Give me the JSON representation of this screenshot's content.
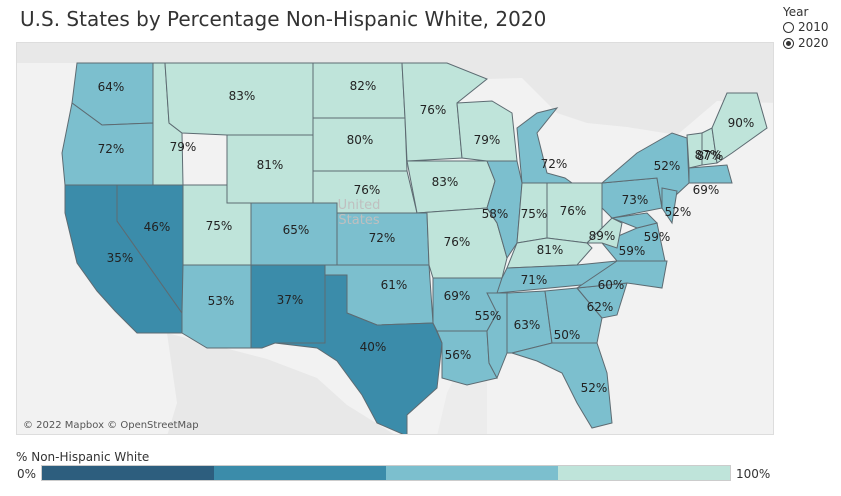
{
  "title": "U.S. States by Percentage Non-Hispanic White, 2020",
  "year_filter": {
    "label": "Year",
    "options": [
      {
        "label": "2010",
        "selected": false
      },
      {
        "label": "2020",
        "selected": true
      }
    ]
  },
  "map": {
    "attribution": "© 2022 Mapbox © OpenStreetMap",
    "basemap_label": [
      "United",
      "States"
    ],
    "colors": {
      "land": "#e6e6e6",
      "water": "#f2f2f2",
      "state_border": "#5d6b72"
    }
  },
  "legend": {
    "title": "% Non-Hispanic White",
    "min_label": "0%",
    "max_label": "100%",
    "colors": [
      "#2d5e7e",
      "#3b8caa",
      "#7cbfce",
      "#bfe4da"
    ]
  },
  "chart_data": {
    "type": "choropleth",
    "year": 2020,
    "measure": "% Non-Hispanic White",
    "range": [
      0,
      100
    ],
    "states": [
      {
        "state": "WA",
        "value": 64
      },
      {
        "state": "OR",
        "value": 72
      },
      {
        "state": "CA",
        "value": 35
      },
      {
        "state": "NV",
        "value": 46
      },
      {
        "state": "ID",
        "value": 79
      },
      {
        "state": "MT",
        "value": 83
      },
      {
        "state": "WY",
        "value": 81
      },
      {
        "state": "UT",
        "value": 75
      },
      {
        "state": "AZ",
        "value": 53
      },
      {
        "state": "CO",
        "value": 65
      },
      {
        "state": "NM",
        "value": 37
      },
      {
        "state": "ND",
        "value": 82
      },
      {
        "state": "SD",
        "value": 80
      },
      {
        "state": "NE",
        "value": 76
      },
      {
        "state": "KS",
        "value": 72
      },
      {
        "state": "OK",
        "value": 61
      },
      {
        "state": "TX",
        "value": 40
      },
      {
        "state": "MN",
        "value": 76
      },
      {
        "state": "IA",
        "value": 83
      },
      {
        "state": "MO",
        "value": 76
      },
      {
        "state": "AR",
        "value": 69
      },
      {
        "state": "LA",
        "value": 56
      },
      {
        "state": "WI",
        "value": 79
      },
      {
        "state": "IL",
        "value": 58
      },
      {
        "state": "MI",
        "value": 72
      },
      {
        "state": "IN",
        "value": 75
      },
      {
        "state": "OH",
        "value": 76
      },
      {
        "state": "KY",
        "value": 81
      },
      {
        "state": "TN",
        "value": 71
      },
      {
        "state": "MS",
        "value": 55
      },
      {
        "state": "AL",
        "value": 63
      },
      {
        "state": "GA",
        "value": 50
      },
      {
        "state": "FL",
        "value": 52
      },
      {
        "state": "SC",
        "value": 62
      },
      {
        "state": "NC",
        "value": 60
      },
      {
        "state": "VA",
        "value": 59
      },
      {
        "state": "WV",
        "value": 89
      },
      {
        "state": "MD",
        "value": 59
      },
      {
        "state": "PA",
        "value": 73
      },
      {
        "state": "NY",
        "value": 52
      },
      {
        "state": "NJ",
        "value": 52
      },
      {
        "state": "VT",
        "value": 87
      },
      {
        "state": "NH",
        "value": 87
      },
      {
        "state": "ME",
        "value": 90
      },
      {
        "state": "MA",
        "value": 69
      }
    ]
  }
}
